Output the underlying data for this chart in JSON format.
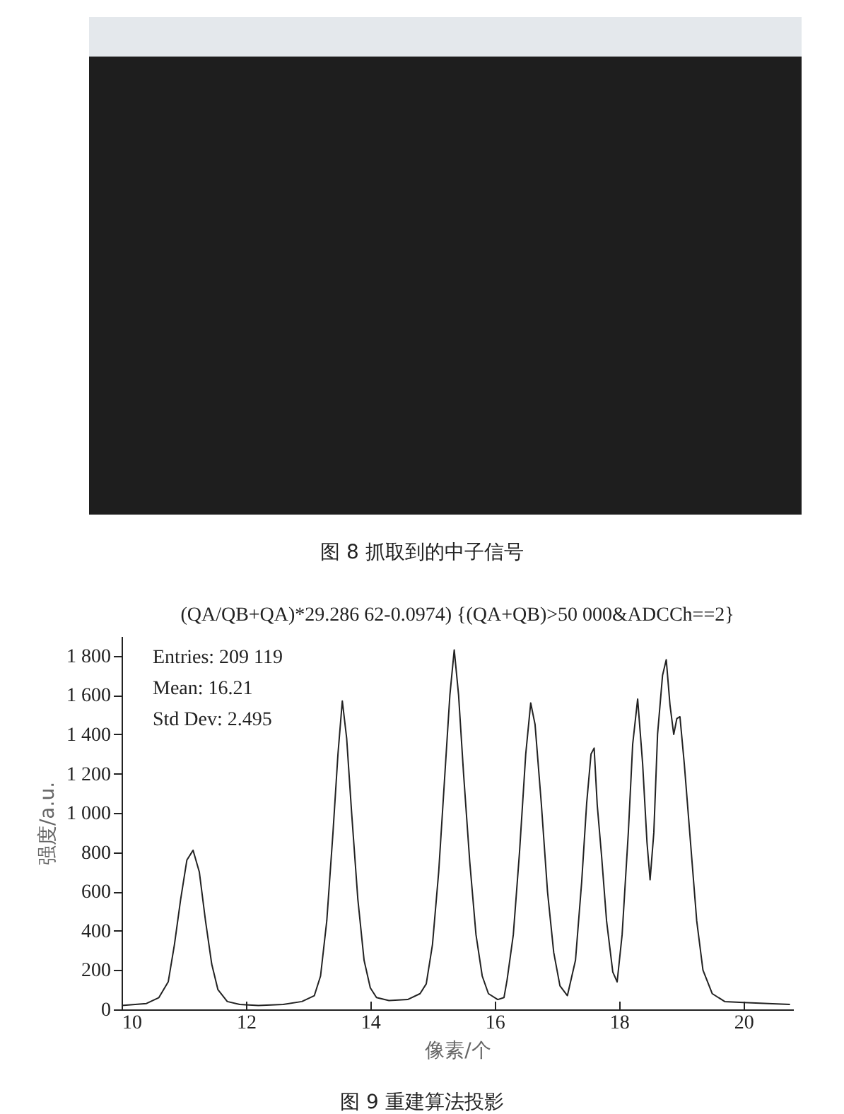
{
  "chart_data": [
    {
      "type": "other",
      "title": "图 8 抓取到的中子信号"
    },
    {
      "type": "line",
      "title": "(QA/QB+QA)*29.286 62-0.0974) {(QA+QB)>50 000&ADCCh==2}",
      "xlabel": "像素/个",
      "ylabel": "强度/a.u.",
      "annotations": [
        "Entries: 209 119",
        "Mean: 16.21",
        "Std Dev: 2.495",
        "图 9 重建算法投影"
      ],
      "x": [
        10.0,
        10.4,
        10.6,
        10.75,
        10.85,
        10.95,
        11.05,
        11.15,
        11.25,
        11.35,
        11.45,
        11.55,
        11.7,
        11.9,
        12.2,
        12.6,
        12.9,
        13.1,
        13.2,
        13.3,
        13.4,
        13.48,
        13.55,
        13.62,
        13.7,
        13.8,
        13.9,
        14.0,
        14.1,
        14.3,
        14.6,
        14.8,
        14.9,
        15.0,
        15.1,
        15.2,
        15.28,
        15.35,
        15.42,
        15.5,
        15.6,
        15.7,
        15.8,
        15.9,
        16.05,
        16.15,
        16.2,
        16.3,
        16.4,
        16.5,
        16.58,
        16.65,
        16.75,
        16.85,
        16.95,
        17.05,
        17.17,
        17.3,
        17.4,
        17.48,
        17.55,
        17.6,
        17.65,
        17.72,
        17.8,
        17.9,
        17.97,
        18.05,
        18.15,
        18.22,
        18.3,
        18.38,
        18.45,
        18.5,
        18.56,
        18.62,
        18.7,
        18.76,
        18.82,
        18.88,
        18.93,
        18.98,
        19.05,
        19.15,
        19.25,
        19.35,
        19.5,
        19.7,
        20.0,
        20.4,
        20.75
      ],
      "series": [
        {
          "color": "#222222",
          "values": [
            20,
            30,
            60,
            140,
            330,
            560,
            760,
            810,
            700,
            450,
            230,
            100,
            40,
            25,
            20,
            25,
            40,
            70,
            170,
            450,
            900,
            1300,
            1570,
            1380,
            1000,
            560,
            250,
            110,
            60,
            45,
            50,
            80,
            130,
            330,
            700,
            1200,
            1600,
            1830,
            1600,
            1200,
            750,
            380,
            170,
            80,
            50,
            60,
            150,
            380,
            800,
            1300,
            1560,
            1450,
            1050,
            600,
            290,
            120,
            70,
            250,
            650,
            1050,
            1300,
            1330,
            1040,
            780,
            450,
            190,
            140,
            380,
            900,
            1350,
            1580,
            1250,
            850,
            660,
            900,
            1400,
            1700,
            1780,
            1550,
            1400,
            1480,
            1490,
            1250,
            850,
            450,
            200,
            80,
            40,
            35,
            30,
            25
          ]
        }
      ],
      "xlim": [
        10,
        20.8
      ],
      "xticks": [
        10,
        12,
        14,
        16,
        18,
        20
      ],
      "ylim": [
        0,
        1900
      ],
      "yticks": [
        0,
        200,
        400,
        600,
        800,
        {
          "value": 1000,
          "label": "1 000"
        },
        {
          "value": 1200,
          "label": "1 200"
        },
        {
          "value": 1400,
          "label": "1 400"
        },
        {
          "value": 1600,
          "label": "1 600"
        },
        {
          "value": 1800,
          "label": "1 800"
        }
      ],
      "marker": "none",
      "line_style": "solid",
      "grid": false
    }
  ]
}
